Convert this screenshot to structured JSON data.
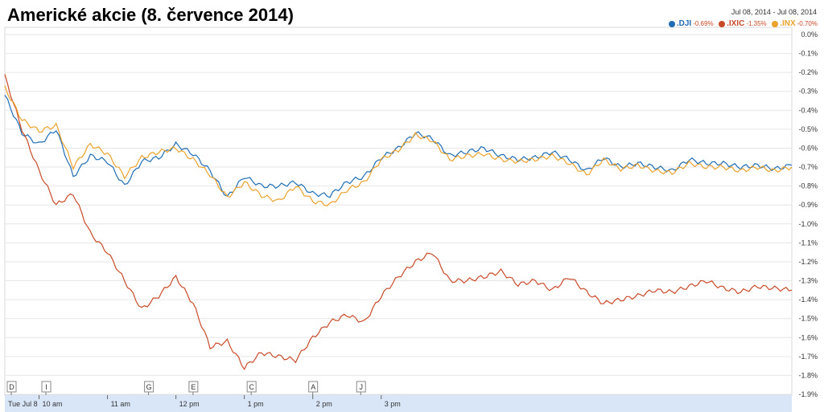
{
  "title": "Americké akcie (8. července 2014)",
  "date_range": {
    "from": "Jul 08, 2014",
    "separator": "-",
    "to": "Jul 08, 2014"
  },
  "chart_data": {
    "type": "line",
    "title": "Americké akcie (8. července 2014)",
    "x_labels": [
      "Tue Jul 8",
      "10 am",
      "11 am",
      "12 pm",
      "1 pm",
      "2 pm",
      "3 pm"
    ],
    "y_ticks": [
      "0.0%",
      "-0.1%",
      "-0.2%",
      "-0.3%",
      "-0.4%",
      "-0.5%",
      "-0.6%",
      "-0.7%",
      "-0.8%",
      "-0.9%",
      "-1.0%",
      "-1.1%",
      "-1.2%",
      "-1.3%",
      "-1.4%",
      "-1.5%",
      "-1.6%",
      "-1.7%",
      "-1.8%",
      "-1.9%"
    ],
    "ylim": [
      -1.9,
      0.0
    ],
    "x": [
      9.5,
      9.75,
      10.0,
      10.25,
      10.5,
      10.75,
      11.0,
      11.25,
      11.5,
      11.75,
      12.0,
      12.25,
      12.5,
      12.75,
      13.0,
      13.25,
      13.5,
      13.75,
      14.0,
      14.25,
      14.5,
      14.75,
      15.0,
      15.25,
      15.5,
      15.75,
      16.0
    ],
    "series": [
      {
        "name": ".DJI",
        "change": "-0.69%",
        "color": "#1f6db5",
        "values": [
          -0.32,
          -0.52,
          -0.58,
          -0.5,
          -0.75,
          -0.64,
          -0.67,
          -0.8,
          -0.67,
          -0.65,
          -0.58,
          -0.63,
          -0.72,
          -0.86,
          -0.75,
          -0.8,
          -0.8,
          -0.78,
          -0.84,
          -0.85,
          -0.78,
          -0.75,
          -0.65,
          -0.6,
          -0.52,
          -0.55,
          -0.64
        ]
      },
      {
        "name": ".IXIC",
        "change": "-1.35%",
        "color": "#c94a28",
        "values": [
          -0.22,
          -0.5,
          -0.72,
          -0.9,
          -0.84,
          -1.05,
          -1.15,
          -1.3,
          -1.45,
          -1.38,
          -1.28,
          -1.42,
          -1.65,
          -1.62,
          -1.76,
          -1.68,
          -1.7,
          -1.72,
          -1.6,
          -1.52,
          -1.48,
          -1.52,
          -1.38,
          -1.28,
          -1.2,
          -1.15,
          -1.3
        ]
      },
      {
        "name": ".INX",
        "change": "-0.70%",
        "color": "#eba22c",
        "values": [
          -0.28,
          -0.45,
          -0.51,
          -0.48,
          -0.7,
          -0.58,
          -0.63,
          -0.75,
          -0.65,
          -0.62,
          -0.6,
          -0.66,
          -0.74,
          -0.86,
          -0.78,
          -0.85,
          -0.88,
          -0.8,
          -0.88,
          -0.9,
          -0.82,
          -0.78,
          -0.66,
          -0.61,
          -0.53,
          -0.56,
          -0.66
        ]
      }
    ],
    "x_extra": [
      16.25,
      16.5,
      16.75,
      17.0,
      17.25,
      17.5,
      17.75,
      18.0,
      18.25,
      18.5,
      18.75,
      19.0,
      19.25,
      19.5,
      19.75,
      20.0,
      20.25,
      20.5,
      20.75,
      21.0
    ],
    "values_extra": {
      ".DJI": [
        -0.62,
        -0.6,
        -0.64,
        -0.66,
        -0.65,
        -0.62,
        -0.66,
        -0.72,
        -0.65,
        -0.7,
        -0.68,
        -0.7,
        -0.72,
        -0.66,
        -0.68,
        -0.68,
        -0.7,
        -0.69,
        -0.71,
        -0.69
      ],
      ".IXIC": [
        -1.3,
        -1.28,
        -1.25,
        -1.32,
        -1.3,
        -1.35,
        -1.28,
        -1.36,
        -1.42,
        -1.4,
        -1.38,
        -1.35,
        -1.36,
        -1.33,
        -1.3,
        -1.34,
        -1.36,
        -1.33,
        -1.34,
        -1.35
      ],
      ".INX": [
        -0.64,
        -0.63,
        -0.66,
        -0.67,
        -0.66,
        -0.64,
        -0.68,
        -0.74,
        -0.66,
        -0.71,
        -0.69,
        -0.72,
        -0.73,
        -0.68,
        -0.7,
        -0.7,
        -0.72,
        -0.7,
        -0.72,
        -0.7
      ]
    },
    "markers": [
      {
        "label": "D",
        "x": 9.5
      },
      {
        "label": "I",
        "x": 10.1
      },
      {
        "label": "G",
        "x": 11.6
      },
      {
        "label": "E",
        "x": 12.25
      },
      {
        "label": "C",
        "x": 13.1
      },
      {
        "label": "A",
        "x": 14.0
      },
      {
        "label": "J",
        "x": 14.7
      }
    ],
    "grid": true,
    "legend_position": "top-right"
  }
}
